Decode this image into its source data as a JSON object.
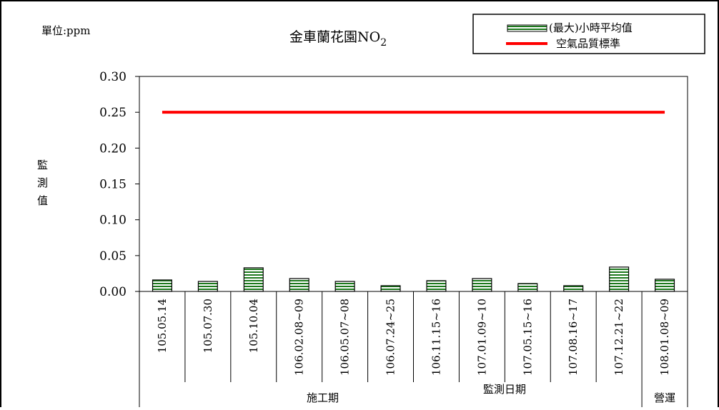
{
  "unit_label": "單位:ppm",
  "chart_data": {
    "type": "bar",
    "title": "金車蘭花園NO",
    "title_subscript": "2",
    "ylabel": "監\n測\n值",
    "xlabel": "監測日期",
    "ylim": [
      0,
      0.3
    ],
    "yticks": [
      0,
      0.05,
      0.1,
      0.15,
      0.2,
      0.25,
      0.3
    ],
    "ytick_labels": [
      "0.00",
      "0.05",
      "0.10",
      "0.15",
      "0.20",
      "0.25",
      "0.30"
    ],
    "categories": [
      "105.05.14",
      "105.07.30",
      "105.10.04",
      "106.02.08~09",
      "106.05.07~08",
      "106.07.24~25",
      "106.11.15~16",
      "107.01.09~10",
      "107.05.15~16",
      "107.08.16~17",
      "107.12.21~22",
      "108.01.08~09"
    ],
    "series": [
      {
        "name": "(最大)小時平均值",
        "type": "bar",
        "values": [
          0.016,
          0.014,
          0.033,
          0.018,
          0.014,
          0.008,
          0.015,
          0.018,
          0.011,
          0.008,
          0.034,
          0.017
        ]
      },
      {
        "name": "空氣品質標準",
        "type": "line",
        "color": "#ff0000",
        "values": [
          0.25,
          0.25,
          0.25,
          0.25,
          0.25,
          0.25,
          0.25,
          0.25,
          0.25,
          0.25,
          0.25,
          0.25
        ]
      }
    ],
    "phase_groups": [
      {
        "label": "施工期",
        "count": 11
      },
      {
        "label": "營運",
        "count": 1
      }
    ],
    "bar_color": "#1e7a1e",
    "bar_stripe_color": "#ffffff",
    "grid": false,
    "legend_position": "top-right"
  }
}
